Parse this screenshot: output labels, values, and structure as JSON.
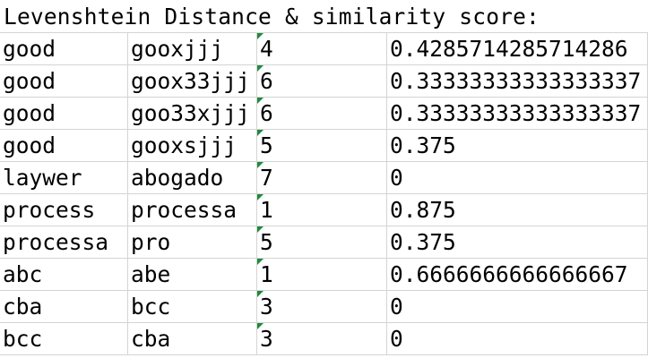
{
  "title": "Levenshtein Distance & similarity score:",
  "rows": [
    {
      "a": "good",
      "b": "gooxjjj",
      "dist": "4",
      "score": "0.4285714285714286"
    },
    {
      "a": "good",
      "b": "goox33jjj",
      "dist": "6",
      "score": "0.33333333333333337"
    },
    {
      "a": "good",
      "b": "goo33xjjj",
      "dist": "6",
      "score": "0.33333333333333337"
    },
    {
      "a": "good",
      "b": "gooxsjjj",
      "dist": "5",
      "score": "0.375"
    },
    {
      "a": "laywer",
      "b": "abogado",
      "dist": "7",
      "score": "0"
    },
    {
      "a": "process",
      "b": "processa",
      "dist": "1",
      "score": "0.875"
    },
    {
      "a": "processa",
      "b": "pro",
      "dist": "5",
      "score": "0.375"
    },
    {
      "a": "abc",
      "b": "abe",
      "dist": "1",
      "score": "0.6666666666666667"
    },
    {
      "a": "cba",
      "b": "bcc",
      "dist": "3",
      "score": "0"
    },
    {
      "a": "bcc",
      "b": "cba",
      "dist": "3",
      "score": "0"
    }
  ],
  "colors": {
    "gridline": "#d4d4d4",
    "number_stored_as_text_flag": "#1e8a3e"
  }
}
